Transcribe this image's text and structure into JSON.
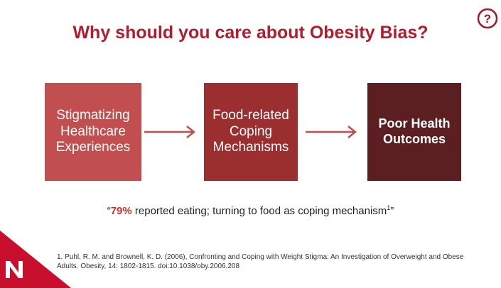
{
  "slide": {
    "title": "Why should you care about Obesity Bias?",
    "help_icon": "question-circle-icon",
    "boxes": [
      {
        "lines": [
          "Stigmatizing",
          "Healthcare",
          "Experiences"
        ],
        "color": "#c24f4f"
      },
      {
        "lines": [
          "Food-related",
          "Coping",
          "Mechanisms"
        ],
        "color": "#9b2f2f"
      },
      {
        "lines": [
          "Poor Health",
          "Outcomes"
        ],
        "color": "#5c1f21"
      }
    ],
    "arrow_icon": "right-arrow-icon",
    "quote": {
      "open_mark": "“",
      "highlight": "79%",
      "text": " reported eating; turning to food as coping mechanism",
      "superscript": "1",
      "close_mark": "”"
    },
    "citation": {
      "line1": "1. Puhl, R. M. and Brownell, K. D. (2006), Confronting and Coping with Weight Stigma: An Investigation of Overweight and Obese",
      "line2": "Adults. Obesity, 14: 1802-1815. doi:10.1038/oby.2006.208"
    },
    "logo_icon": "university-n-logo-icon",
    "colors": {
      "accent": "#b01e2e",
      "highlight": "#c0392b"
    }
  }
}
